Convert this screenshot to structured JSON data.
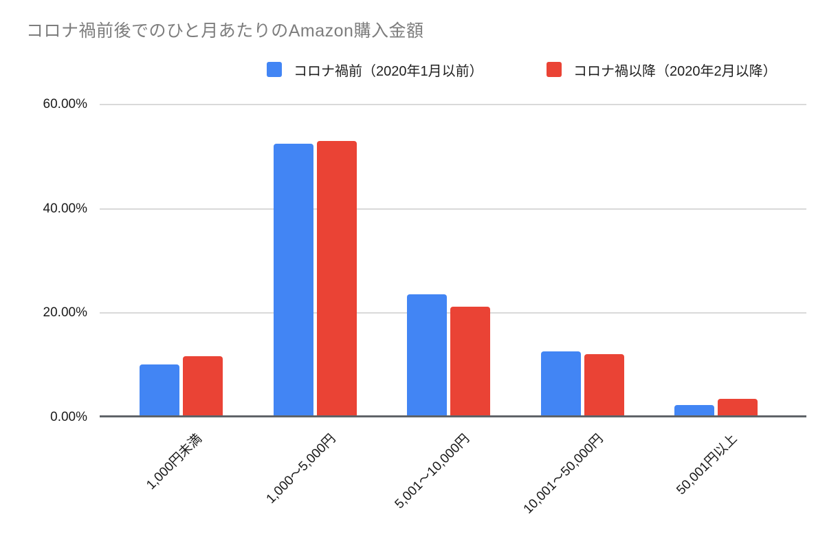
{
  "title": "コロナ禍前後でのひと月あたりのAmazon購入金額",
  "chart_data": {
    "type": "bar",
    "title": "コロナ禍前後でのひと月あたりのAmazon購入金額",
    "categories": [
      "1,000円未満",
      "1,000～5,000円",
      "5,001～10,000円",
      "10,001～50,000円",
      "50,001円以上"
    ],
    "series": [
      {
        "name": "コロナ禍前（2020年1月以前）",
        "color": "#4285F4",
        "values": [
          9.7,
          52.1,
          23.2,
          12.2,
          2.0
        ]
      },
      {
        "name": "コロナ禍以降（2020年2月以降）",
        "color": "#EA4335",
        "values": [
          11.3,
          52.6,
          20.9,
          11.8,
          3.1
        ]
      }
    ],
    "xlabel": "",
    "ylabel": "",
    "ylim": [
      0,
      60
    ],
    "yticks": [
      {
        "value": 0,
        "label": "0.00%"
      },
      {
        "value": 20,
        "label": "20.00%"
      },
      {
        "value": 40,
        "label": "40.00%"
      },
      {
        "value": 60,
        "label": "60.00%"
      }
    ],
    "grid": true,
    "legend_position": "top"
  },
  "colors": {
    "grid": "#d9d9d9",
    "axis": "#5f6368",
    "title_text": "#7d7d7d",
    "label_text": "#1a1a1a"
  }
}
